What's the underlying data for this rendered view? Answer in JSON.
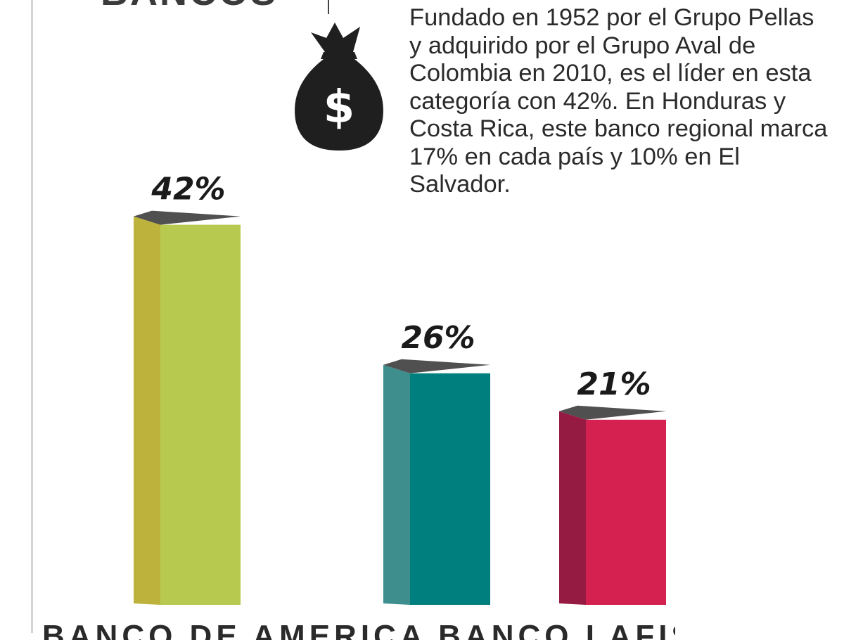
{
  "header": {
    "title_fragment": "BANCOS"
  },
  "icon": {
    "name": "money-bag-icon",
    "symbol": "$",
    "color": "#1f1f1f"
  },
  "description": "Fundado en 1952 por el Grupo Pellas y adquirido por el Grupo Aval de Colombia en 2010, es el líder en esta categoría con 42%. En Honduras y Costa Rica, este banco regional marca 17% en cada país y 10% en El Salvador.",
  "chart_data": {
    "type": "bar",
    "title": "",
    "xlabel": "",
    "ylabel": "",
    "unit": "%",
    "grid": false,
    "legend": "none",
    "ylim": [
      0,
      42
    ],
    "categories": [
      "",
      "",
      ""
    ],
    "values": [
      42,
      26,
      21
    ],
    "labels": [
      "42%",
      "26%",
      "21%"
    ],
    "colors": {
      "front": [
        "#b7c94e",
        "#007f7f",
        "#d42150"
      ],
      "side": [
        "#bdb33c",
        "#3e8e8e",
        "#961b42"
      ],
      "top": "#505050"
    }
  },
  "footer": {
    "labels_fragment": "BANCO DE AMERICA   BANCO   LAFISE"
  }
}
